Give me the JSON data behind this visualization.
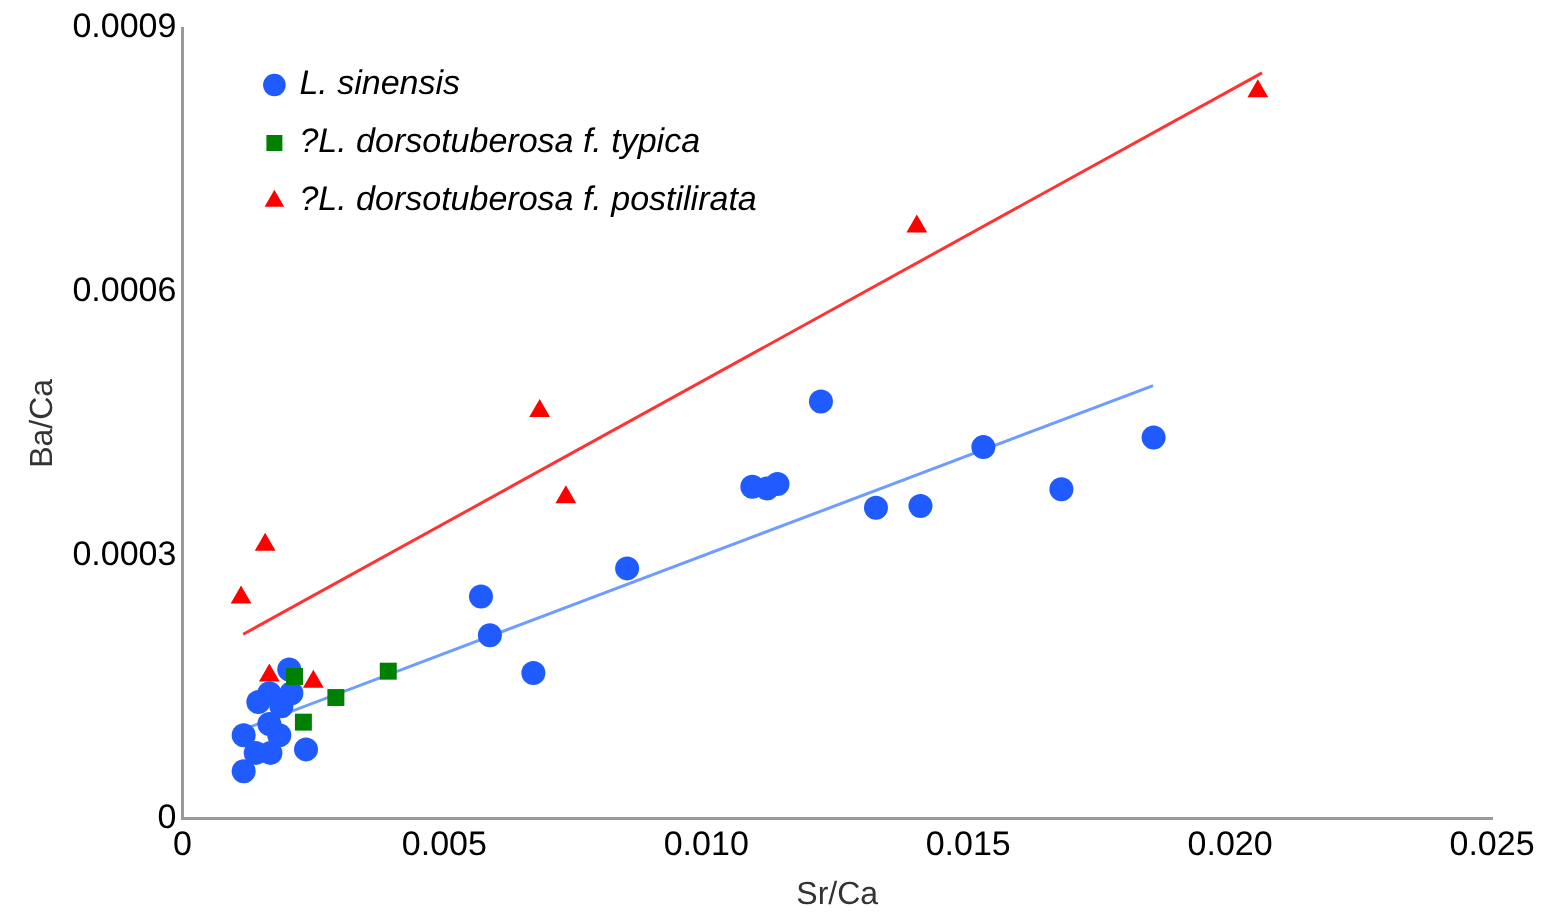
{
  "chart_data": {
    "type": "scatter",
    "xlabel": "Sr/Ca",
    "ylabel": "Ba/Ca",
    "xlim": [
      0,
      0.025
    ],
    "ylim": [
      0,
      0.0009
    ],
    "xticks": [
      0,
      0.005,
      {
        "value": 0.01,
        "label": "0.010"
      },
      0.015,
      {
        "value": 0.02,
        "label": "0.020"
      },
      0.025
    ],
    "yticks": [
      0,
      0.0003,
      0.0006,
      0.0009
    ],
    "grid": false,
    "legend": "top left",
    "series": [
      {
        "name": "L. sinensis",
        "color": "#1f5bff",
        "marker": "circle",
        "x": [
          0.00117,
          0.00117,
          0.0014,
          0.00168,
          0.00145,
          0.00166,
          0.00185,
          0.00189,
          0.00204,
          0.00208,
          0.00236,
          0.00166,
          0.0057,
          0.00587,
          0.0067,
          0.00849,
          0.01088,
          0.01116,
          0.01136,
          0.01219,
          0.01324,
          0.01409,
          0.01529,
          0.01678,
          0.01854
        ],
        "values": [
          5.4e-05,
          9.5e-05,
          7.5e-05,
          7.5e-05,
          0.000133,
          0.000108,
          9.5e-05,
          0.000128,
          0.00017,
          0.000143,
          7.9e-05,
          0.000143,
          0.000253,
          0.000209,
          0.000166,
          0.000285,
          0.000378,
          0.000376,
          0.000381,
          0.000475,
          0.000354,
          0.000356,
          0.000423,
          0.000375,
          0.000434
        ]
      },
      {
        "name": "?L. dorsotuberosa f. typica",
        "color": "#008000",
        "marker": "square",
        "x": [
          0.00214,
          0.00231,
          0.00293,
          0.00393
        ],
        "values": [
          0.000162,
          0.00011,
          0.000138,
          0.000168
        ]
      },
      {
        "name": "?L. dorsotuberosa f. postilirata",
        "color": "#ff0000",
        "marker": "triangle",
        "x": [
          0.00112,
          0.00158,
          0.00166,
          0.0025,
          0.00682,
          0.00732,
          0.01402,
          0.02053
        ],
        "values": [
          0.000252,
          0.000312,
          0.000163,
          0.000156,
          0.000464,
          0.000366,
          0.000674,
          0.000828
        ]
      },
      {
        "type": "line",
        "color": "#6f9cff",
        "marker": "none",
        "x": [
          0.00127,
          0.01853
        ],
        "values": [
          0.000104,
          0.000493
        ]
      },
      {
        "type": "line",
        "color": "#ff3333",
        "marker": "none",
        "x": [
          0.00116,
          0.02061
        ],
        "values": [
          0.00021,
          0.000849
        ]
      }
    ]
  }
}
